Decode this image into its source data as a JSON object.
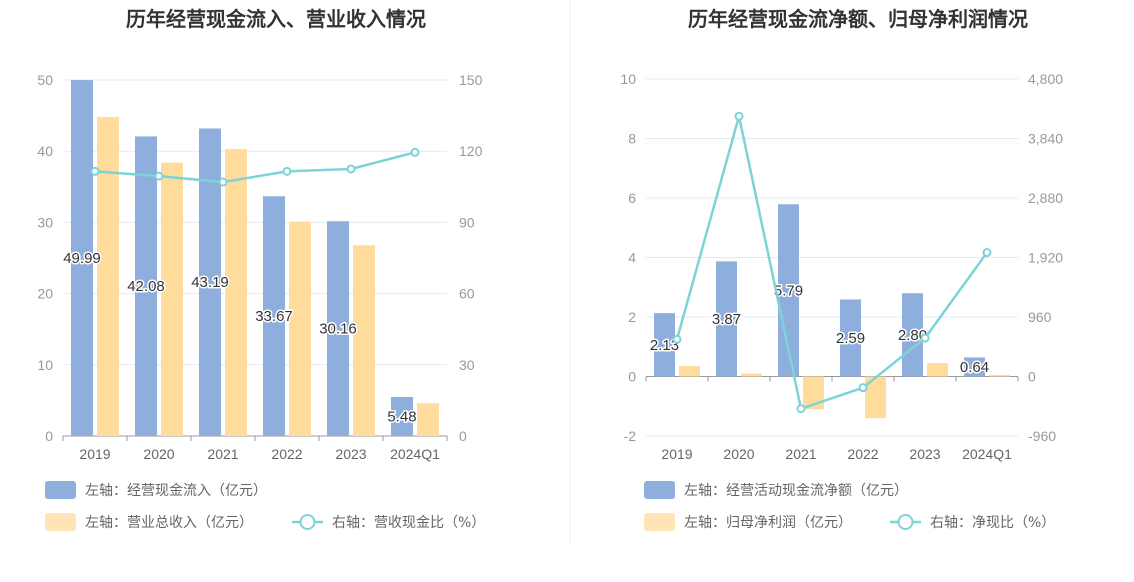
{
  "colors": {
    "bar_primary": "#8eaedd",
    "bar_secondary": "#ffdb9c",
    "line": "#7dd3d8",
    "grid": "#e3e8f4",
    "axis": "#999999",
    "divider": "#eeeeee"
  },
  "chart_data": [
    {
      "type": "bar",
      "title": "历年经营现金流入、营业收入情况",
      "categories": [
        "2019",
        "2020",
        "2021",
        "2022",
        "2023",
        "2024Q1"
      ],
      "series": [
        {
          "name": "左轴：经营现金流入（亿元）",
          "type": "bar",
          "axis": "left",
          "values": [
            49.99,
            42.08,
            43.19,
            33.67,
            30.16,
            5.48
          ],
          "labels": [
            "49.99",
            "42.08",
            "43.19",
            "33.67",
            "30.16",
            "5.48"
          ]
        },
        {
          "name": "左轴：营业总收入（亿元）",
          "type": "bar",
          "axis": "left",
          "values": [
            44.8,
            38.4,
            40.3,
            30.1,
            26.8,
            4.6
          ]
        },
        {
          "name": "右轴：营收现金比（%）",
          "type": "line",
          "axis": "right",
          "values": [
            111.5,
            109.5,
            107.0,
            111.5,
            112.5,
            119.5
          ]
        }
      ],
      "left_axis": {
        "min": 0,
        "max": 50,
        "ticks": [
          "0",
          "10",
          "20",
          "30",
          "40",
          "50"
        ]
      },
      "right_axis": {
        "min": 0,
        "max": 150,
        "ticks": [
          "0",
          "30",
          "60",
          "90",
          "120",
          "150"
        ]
      },
      "legend_position": "bottom-left",
      "grid": true
    },
    {
      "type": "bar",
      "title": "历年经营现金流净额、归母净利润情况",
      "categories": [
        "2019",
        "2020",
        "2021",
        "2022",
        "2023",
        "2024Q1"
      ],
      "series": [
        {
          "name": "左轴：经营活动现金流净额（亿元）",
          "type": "bar",
          "axis": "left",
          "values": [
            2.13,
            3.87,
            5.79,
            2.59,
            2.8,
            0.64
          ],
          "labels": [
            "2.13",
            "3.87",
            "5.79",
            "2.59",
            "2.80",
            "0.64"
          ]
        },
        {
          "name": "左轴：归母净利润（亿元）",
          "type": "bar",
          "axis": "left",
          "values": [
            0.35,
            0.1,
            -1.1,
            -1.4,
            0.45,
            0.05
          ]
        },
        {
          "name": "右轴：净现比（%）",
          "type": "line",
          "axis": "right",
          "values": [
            600,
            4200,
            -520,
            -180,
            620,
            2000
          ]
        }
      ],
      "left_axis": {
        "min": -2,
        "max": 10,
        "ticks": [
          "-2",
          "0",
          "2",
          "4",
          "6",
          "8",
          "10"
        ]
      },
      "right_axis": {
        "min": -960,
        "max": 4800,
        "ticks": [
          "-960",
          "0",
          "960",
          "1,920",
          "2,880",
          "3,840",
          "4,800"
        ]
      },
      "legend_position": "bottom-left",
      "grid": true
    }
  ]
}
